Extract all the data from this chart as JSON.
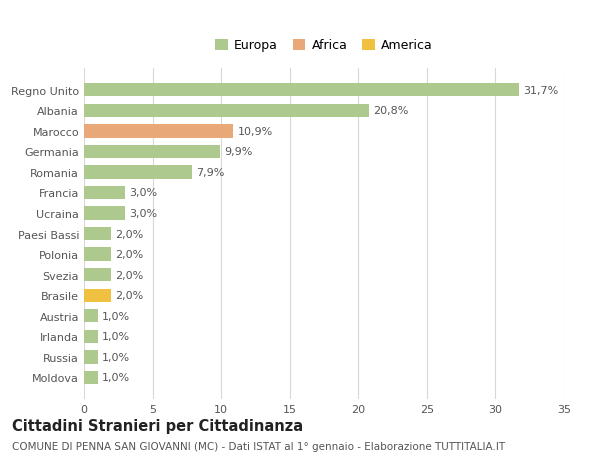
{
  "categories": [
    "Moldova",
    "Russia",
    "Irlanda",
    "Austria",
    "Brasile",
    "Svezia",
    "Polonia",
    "Paesi Bassi",
    "Ucraina",
    "Francia",
    "Romania",
    "Germania",
    "Marocco",
    "Albania",
    "Regno Unito"
  ],
  "values": [
    1.0,
    1.0,
    1.0,
    1.0,
    2.0,
    2.0,
    2.0,
    2.0,
    3.0,
    3.0,
    7.9,
    9.9,
    10.9,
    20.8,
    31.7
  ],
  "colors": [
    "#adc98e",
    "#adc98e",
    "#adc98e",
    "#adc98e",
    "#f0c040",
    "#adc98e",
    "#adc98e",
    "#adc98e",
    "#adc98e",
    "#adc98e",
    "#adc98e",
    "#adc98e",
    "#e8a878",
    "#adc98e",
    "#adc98e"
  ],
  "labels": [
    "1,0%",
    "1,0%",
    "1,0%",
    "1,0%",
    "2,0%",
    "2,0%",
    "2,0%",
    "2,0%",
    "3,0%",
    "3,0%",
    "7,9%",
    "9,9%",
    "10,9%",
    "20,8%",
    "31,7%"
  ],
  "legend_labels": [
    "Europa",
    "Africa",
    "America"
  ],
  "legend_colors": [
    "#adc98e",
    "#e8a878",
    "#f0c040"
  ],
  "title": "Cittadini Stranieri per Cittadinanza",
  "subtitle": "COMUNE DI PENNA SAN GIOVANNI (MC) - Dati ISTAT al 1° gennaio - Elaborazione TUTTITALIA.IT",
  "xlim": [
    0,
    35
  ],
  "xticks": [
    0,
    5,
    10,
    15,
    20,
    25,
    30,
    35
  ],
  "background_color": "#ffffff",
  "grid_color": "#d8d8d8",
  "bar_height": 0.65,
  "label_fontsize": 8,
  "tick_fontsize": 8,
  "title_fontsize": 10.5,
  "subtitle_fontsize": 7.5
}
